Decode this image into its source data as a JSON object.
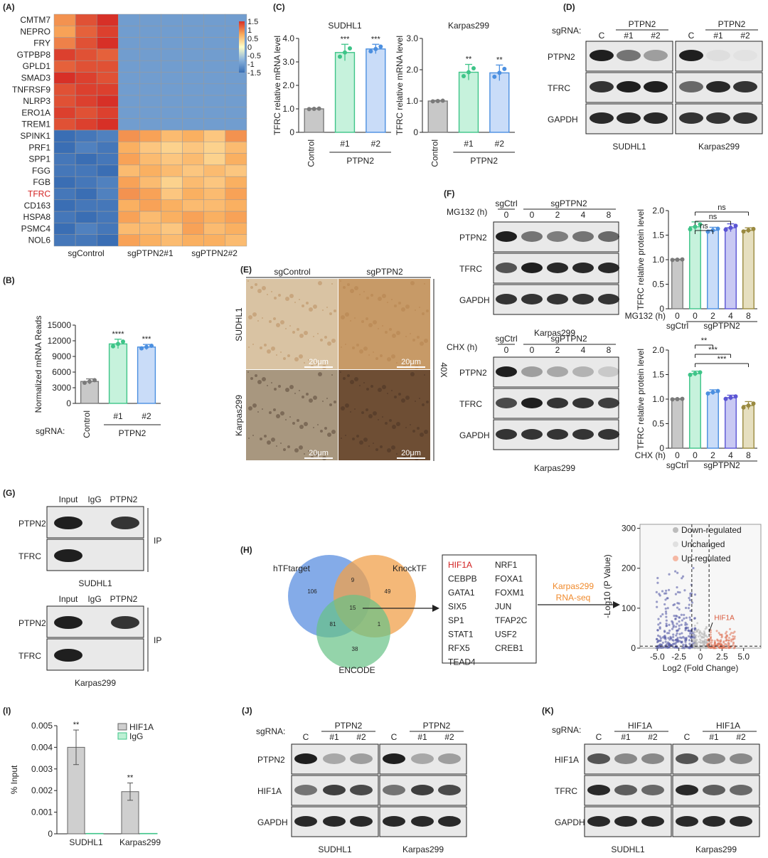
{
  "panels": {
    "A": "(A)",
    "B": "(B)",
    "C": "(C)",
    "D": "(D)",
    "E": "(E)",
    "F": "(F)",
    "G": "(G)",
    "H": "(H)",
    "I": "(I)",
    "J": "(J)",
    "K": "(K)"
  },
  "heatmap": {
    "genes": [
      "CMTM7",
      "NEPRO",
      "FRY",
      "GTPBP8",
      "GPLD1",
      "SMAD3",
      "TNFRSF9",
      "NLRP3",
      "ERO1A",
      "TREM1",
      "SPINK1",
      "PRF1",
      "SPP1",
      "FGG",
      "FGB",
      "TFRC",
      "CD163",
      "HSPA8",
      "PSMC4",
      "NOL6"
    ],
    "highlight_gene": "TFRC",
    "groups": [
      "sgControl",
      "sgPTPN2#1",
      "sgPTPN2#2"
    ],
    "scale_labels": [
      "1.5",
      "1",
      "0.5",
      "0",
      "-0.5",
      "-1",
      "-1.5"
    ],
    "values": [
      [
        0.9,
        1.3,
        1.5,
        -1.0,
        -1.0,
        -1.0,
        -1.0,
        -1.0,
        -1.0
      ],
      [
        0.8,
        1.2,
        1.4,
        -1.0,
        -1.0,
        -1.0,
        -1.0,
        -1.0,
        -1.0
      ],
      [
        1.0,
        1.3,
        1.5,
        -1.0,
        -1.0,
        -1.0,
        -1.0,
        -1.0,
        -1.0
      ],
      [
        1.4,
        1.3,
        1.2,
        -1.0,
        -1.0,
        -1.0,
        -1.0,
        -1.0,
        -1.0
      ],
      [
        1.2,
        1.3,
        1.3,
        -1.0,
        -1.0,
        -1.0,
        -1.0,
        -1.0,
        -1.0
      ],
      [
        1.5,
        1.4,
        1.3,
        -1.0,
        -1.0,
        -1.0,
        -1.0,
        -1.0,
        -1.0
      ],
      [
        1.3,
        1.4,
        1.4,
        -1.0,
        -1.0,
        -1.0,
        -1.0,
        -1.0,
        -1.0
      ],
      [
        1.3,
        1.4,
        1.5,
        -1.0,
        -1.0,
        -1.0,
        -1.0,
        -1.0,
        -1.0
      ],
      [
        1.4,
        1.3,
        1.4,
        -1.0,
        -1.0,
        -1.0,
        -1.0,
        -1.0,
        -1.0
      ],
      [
        1.3,
        1.4,
        1.5,
        -1.0,
        -1.0,
        -1.0,
        -1.0,
        -1.0,
        -1.0
      ],
      [
        -1.5,
        -1.4,
        -1.3,
        0.9,
        0.8,
        0.6,
        0.7,
        0.5,
        0.9
      ],
      [
        -1.5,
        -1.3,
        -1.4,
        0.7,
        0.5,
        0.4,
        0.5,
        0.4,
        0.6
      ],
      [
        -1.4,
        -1.5,
        -1.4,
        0.8,
        0.6,
        0.5,
        0.6,
        0.4,
        0.7
      ],
      [
        -1.4,
        -1.4,
        -1.5,
        0.6,
        0.7,
        0.6,
        0.5,
        0.6,
        0.5
      ],
      [
        -1.5,
        -1.4,
        -1.3,
        0.8,
        0.6,
        0.4,
        0.6,
        0.5,
        0.7
      ],
      [
        -1.4,
        -1.5,
        -1.3,
        0.9,
        0.8,
        0.5,
        0.7,
        0.6,
        0.8
      ],
      [
        -1.5,
        -1.4,
        -1.4,
        0.7,
        0.8,
        0.7,
        0.6,
        0.6,
        0.7
      ],
      [
        -1.4,
        -1.5,
        -1.4,
        0.8,
        0.6,
        0.7,
        0.8,
        0.7,
        0.8
      ],
      [
        -1.5,
        -1.3,
        -1.4,
        0.6,
        0.6,
        0.5,
        0.8,
        0.6,
        0.7
      ],
      [
        -1.4,
        -1.4,
        -1.5,
        0.8,
        0.7,
        0.6,
        0.7,
        0.7,
        0.6
      ]
    ]
  },
  "chart_data": [
    {
      "id": "B",
      "type": "bar",
      "ylabel": "Normalized mRNA Reads",
      "ylim": [
        0,
        15000
      ],
      "yticks": [
        "0",
        "3000",
        "6000",
        "9000",
        "12000",
        "15000"
      ],
      "categories": [
        "Control",
        "#1",
        "#2"
      ],
      "values": [
        4200,
        11400,
        10800
      ],
      "errors": [
        500,
        900,
        500
      ],
      "sig": [
        "",
        "****",
        "***"
      ],
      "group_label": "PTPN2",
      "row_label": "sgRNA:",
      "colors": [
        "#c8c8c8",
        "#c6f2dc",
        "#c9dcf8"
      ],
      "edges": [
        "#7a7a7a",
        "#3ec488",
        "#4b8fe0"
      ]
    },
    {
      "id": "C1",
      "type": "bar",
      "title": "SUDHL1",
      "ylabel": "TFRC relative mRNA level",
      "ylim": [
        0,
        4
      ],
      "yticks": [
        "0",
        "1.0",
        "2.0",
        "3.0",
        "4.0"
      ],
      "categories": [
        "Control",
        "#1",
        "#2"
      ],
      "values": [
        1.0,
        3.4,
        3.55
      ],
      "errors": [
        0.02,
        0.35,
        0.2
      ],
      "sig": [
        "",
        "***",
        "***"
      ],
      "group_label": "PTPN2",
      "colors": [
        "#c8c8c8",
        "#c6f2dc",
        "#c9dcf8"
      ],
      "edges": [
        "#7a7a7a",
        "#3ec488",
        "#4b8fe0"
      ]
    },
    {
      "id": "C2",
      "type": "bar",
      "title": "Karpas299",
      "ylabel": "TFRC relative mRNA level",
      "ylim": [
        0,
        3
      ],
      "yticks": [
        "0",
        "1.0",
        "2.0",
        "3.0"
      ],
      "categories": [
        "Control",
        "#1",
        "#2"
      ],
      "values": [
        1.0,
        1.92,
        1.9
      ],
      "errors": [
        0.02,
        0.25,
        0.25
      ],
      "sig": [
        "",
        "**",
        "**"
      ],
      "group_label": "PTPN2",
      "colors": [
        "#c8c8c8",
        "#c6f2dc",
        "#c9dcf8"
      ],
      "edges": [
        "#7a7a7a",
        "#3ec488",
        "#4b8fe0"
      ]
    },
    {
      "id": "F1",
      "type": "bar",
      "ylabel": "TFRC relative protein level",
      "ylim": [
        0,
        2.0
      ],
      "yticks": [
        "0",
        "0.5",
        "1.0",
        "1.5",
        "2.0"
      ],
      "treatment": "MG132 (h)",
      "categories": [
        "0",
        "0",
        "2",
        "4",
        "8"
      ],
      "values": [
        1.0,
        1.67,
        1.6,
        1.65,
        1.6
      ],
      "errors": [
        0.01,
        0.1,
        0.06,
        0.08,
        0.05
      ],
      "groups": [
        "sgCtrl",
        "sgPTPN2"
      ],
      "brackets": [
        {
          "from": 1,
          "to": 2,
          "label": "ns"
        },
        {
          "from": 1,
          "to": 3,
          "label": "ns"
        },
        {
          "from": 1,
          "to": 4,
          "label": "ns"
        }
      ],
      "colors": [
        "#c8c8c8",
        "#c6f2dc",
        "#c9dcf8",
        "#c9c9f3",
        "#e6dfbf"
      ],
      "edges": [
        "#7a7a7a",
        "#3ec488",
        "#4b8fe0",
        "#5b55d4",
        "#9a8a40"
      ]
    },
    {
      "id": "F2",
      "type": "bar",
      "ylabel": "TFRC relative protein level",
      "ylim": [
        0,
        2.0
      ],
      "yticks": [
        "0",
        "0.5",
        "1.0",
        "1.5",
        "2.0"
      ],
      "treatment": "CHX (h)",
      "categories": [
        "0",
        "0",
        "2",
        "4",
        "8"
      ],
      "values": [
        1.0,
        1.52,
        1.14,
        1.03,
        0.87
      ],
      "errors": [
        0.01,
        0.05,
        0.05,
        0.05,
        0.08
      ],
      "groups": [
        "sgCtrl",
        "sgPTPN2"
      ],
      "brackets": [
        {
          "from": 1,
          "to": 2,
          "label": "**"
        },
        {
          "from": 1,
          "to": 3,
          "label": "***"
        },
        {
          "from": 1,
          "to": 4,
          "label": "***"
        }
      ],
      "colors": [
        "#c8c8c8",
        "#c6f2dc",
        "#c9dcf8",
        "#c9c9f3",
        "#e6dfbf"
      ],
      "edges": [
        "#7a7a7a",
        "#3ec488",
        "#4b8fe0",
        "#5b55d4",
        "#9a8a40"
      ]
    },
    {
      "id": "I",
      "type": "bar",
      "ylabel": "% Input",
      "ylim": [
        0,
        0.005
      ],
      "yticks": [
        "0",
        "0.001",
        "0.002",
        "0.003",
        "0.004",
        "0.005"
      ],
      "categories": [
        "SUDHL1",
        "Karpas299"
      ],
      "series": [
        {
          "name": "HIF1A",
          "values": [
            0.004,
            0.00195
          ],
          "errors": [
            0.0008,
            0.0004
          ],
          "color": "#cfcfcf",
          "edge": "#666"
        },
        {
          "name": "IgG",
          "values": [
            2e-05,
            2e-05
          ],
          "errors": [
            0,
            0
          ],
          "color": "#bdf0d4",
          "edge": "#3ec488"
        }
      ],
      "sig": [
        "**",
        "**"
      ]
    },
    {
      "id": "H-volcano",
      "type": "scatter",
      "xlabel": "Log2 (Fold Change)",
      "ylabel": "-Log10 (P Value)",
      "xlim": [
        -7,
        7
      ],
      "ylim": [
        0,
        310
      ],
      "xticks": [
        "-5.0",
        "-2.5",
        "0",
        "2.5",
        "5.0"
      ],
      "yticks": [
        "0",
        "100",
        "200",
        "300"
      ],
      "legend": [
        "Down-regulated",
        "Unchanged",
        "Up-regulated"
      ],
      "legend_colors": [
        "#bcbcbc",
        "#e0e0e0",
        "#f5b8a4"
      ],
      "annotation": "HIF1A"
    }
  ],
  "blots": {
    "D": {
      "row_title": "sgRNA:",
      "lanes": [
        "C",
        "#1",
        "#2"
      ],
      "group": "PTPN2",
      "proteins": [
        "PTPN2",
        "TFRC",
        "GAPDH"
      ],
      "cells": [
        "SUDHL1",
        "Karpas299"
      ]
    },
    "F": {
      "sgctrl": "sgCtrl",
      "sgptpn2": "sgPTPN2",
      "mg_label": "MG132 (h)",
      "chx_label": "CHX (h)",
      "times": [
        "0",
        "0",
        "2",
        "4",
        "8"
      ],
      "proteins": [
        "PTPN2",
        "TFRC",
        "GAPDH"
      ],
      "cell": "Karpas299"
    },
    "G": {
      "lanes": [
        "Input",
        "IgG",
        "PTPN2"
      ],
      "proteins": [
        "PTPN2",
        "TFRC"
      ],
      "ip": "IP",
      "cells": [
        "SUDHL1",
        "Karpas299"
      ]
    },
    "J": {
      "row_title": "sgRNA:",
      "lanes": [
        "C",
        "#1",
        "#2"
      ],
      "group": "PTPN2",
      "proteins": [
        "PTPN2",
        "HIF1A",
        "GAPDH"
      ],
      "cells": [
        "SUDHL1",
        "Karpas299"
      ]
    },
    "K": {
      "row_title": "sgRNA:",
      "lanes": [
        "C",
        "#1",
        "#2"
      ],
      "group": "HIF1A",
      "proteins": [
        "HIF1A",
        "TFRC",
        "GAPDH"
      ],
      "cells": [
        "SUDHL1",
        "Karpas299"
      ]
    }
  },
  "ihc": {
    "cols": [
      "sgControl",
      "sgPTPN2"
    ],
    "rows": [
      "SUDHL1",
      "Karpas299"
    ],
    "mag": "40X",
    "scale": "20μm"
  },
  "venn": {
    "sets": [
      "hTFtarget",
      "KnockTF",
      "ENCODE"
    ],
    "counts": [
      "106",
      "9",
      "49",
      "15",
      "81",
      "1",
      "38"
    ],
    "tfs_col1": [
      "HIF1A",
      "CEBPB",
      "GATA1",
      "SIX5",
      "SP1",
      "STAT1",
      "RFX5",
      "TEAD4"
    ],
    "tfs_col2": [
      "NRF1",
      "FOXA1",
      "FOXM1",
      "JUN",
      "TFAP2C",
      "USF2",
      "CREB1"
    ],
    "arrow_label1": "Karpas299",
    "arrow_label2": "RNA-seq"
  }
}
